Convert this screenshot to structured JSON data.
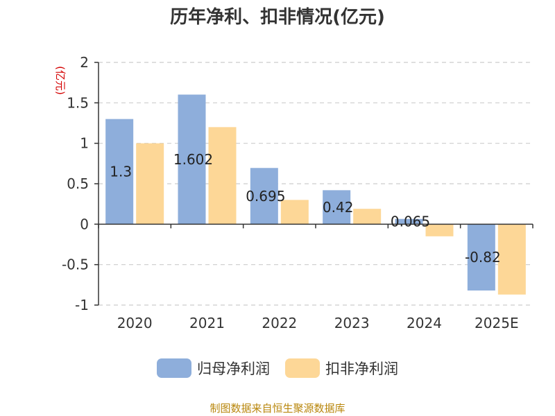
{
  "chart_data": {
    "type": "bar",
    "title": "历年净利、扣非情况(亿元)",
    "ylabel": "(亿元)",
    "xlabel": "",
    "categories": [
      "2020",
      "2021",
      "2022",
      "2023",
      "2024",
      "2025E"
    ],
    "series": [
      {
        "name": "归母净利润",
        "values": [
          1.3,
          1.602,
          0.695,
          0.42,
          0.065,
          -0.82
        ],
        "color": "#8eaedb",
        "labels": [
          "1.3",
          "1.602",
          "0.695",
          "0.42",
          "0.065",
          "-0.82"
        ]
      },
      {
        "name": "扣非净利润",
        "values": [
          1.0,
          1.2,
          0.3,
          0.19,
          -0.15,
          -0.87
        ],
        "color": "#fdd797"
      }
    ],
    "ylim": [
      -1,
      2
    ],
    "yticks": [
      -1,
      -0.5,
      0,
      0.5,
      1,
      1.5,
      2
    ],
    "ytick_labels": [
      "-1",
      "-0.5",
      "0",
      "0.5",
      "1",
      "1.5",
      "2"
    ],
    "grid": true,
    "legend_position": "bottom-center",
    "ylabel_color": "#d40000"
  },
  "footer": {
    "source": "制图数据来自恒生聚源数据库"
  }
}
